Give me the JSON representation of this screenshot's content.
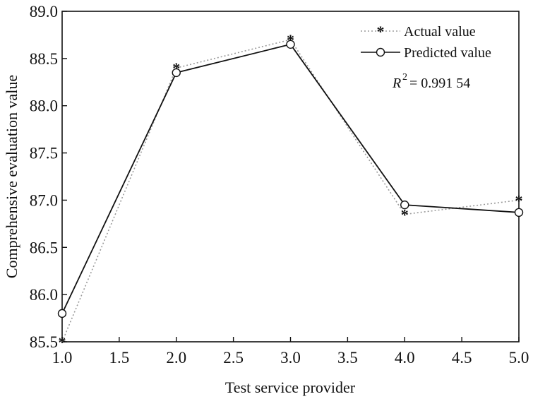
{
  "chart_data": {
    "type": "line",
    "title": "",
    "xlabel": "Test service provider",
    "ylabel": "Comprehensive evaluation value",
    "xlim": [
      1.0,
      5.0
    ],
    "ylim": [
      85.5,
      89.0
    ],
    "xticks": [
      "1.0",
      "1.5",
      "2.0",
      "2.5",
      "3.0",
      "3.5",
      "4.0",
      "4.5",
      "5.0"
    ],
    "yticks": [
      "85.5",
      "86.0",
      "86.5",
      "87.0",
      "87.5",
      "88.0",
      "88.5",
      "89.0"
    ],
    "grid": false,
    "legend_position": "top-right",
    "series": [
      {
        "name": "Actual value",
        "marker": "asterisk",
        "line_style": "dotted",
        "color": "#9a9a9a",
        "x": [
          1,
          2,
          3,
          4,
          5
        ],
        "y": [
          85.5,
          88.4,
          88.7,
          86.85,
          87.0
        ]
      },
      {
        "name": "Predicted value",
        "marker": "circle",
        "line_style": "solid",
        "color": "#111111",
        "x": [
          1,
          2,
          3,
          4,
          5
        ],
        "y": [
          85.8,
          88.35,
          88.65,
          86.95,
          86.87
        ]
      }
    ],
    "annotation": {
      "r2_symbol": "R",
      "r2_exponent": "2",
      "r2_value": "= 0.991 54"
    }
  }
}
